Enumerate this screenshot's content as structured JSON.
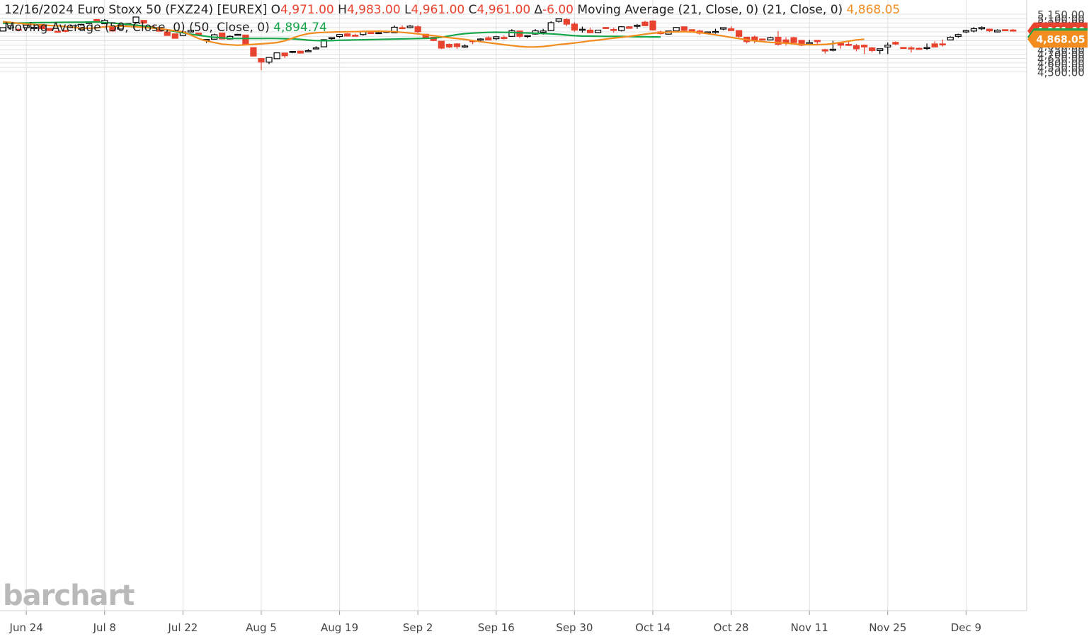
{
  "header": {
    "line1": {
      "date": "12/16/2024",
      "instrument": "Euro Stoxx 50 (FXZ24) [EUREX]",
      "o_label": "O",
      "o_value": "4,971.00",
      "h_label": "H",
      "h_value": "4,983.00",
      "l_label": "L",
      "l_value": "4,961.00",
      "c_label": "C",
      "c_value": "4,961.00",
      "d_label": "∆",
      "d_value": "-6.00",
      "ma21_label": "Moving Average (21, Close, 0)  (21, Close, 0)",
      "ma21_value": "4,868.05"
    },
    "line2": {
      "ma50_label": "Moving Average (50, Close, 0)  (50, Close, 0)",
      "ma50_value": "4,894.74"
    }
  },
  "watermark": "barchart",
  "colors": {
    "up": "#ffffff",
    "up_stroke": "#000000",
    "down": "#e8432e",
    "ma21": "#f28c1e",
    "ma50": "#17a64a",
    "grid": "#e0e0e0"
  },
  "chart_data": {
    "type": "candlestick",
    "ylim": [
      4490,
      5160
    ],
    "y_ticks": [
      "4,500.00",
      "4,550.00",
      "4,600.00",
      "4,650.00",
      "4,700.00",
      "4,750.00",
      "4,800.00",
      "4,850.00",
      "4,900.00",
      "4,950.00",
      "5,000.00",
      "5,050.00",
      "5,100.00",
      "5,150.00"
    ],
    "x_ticks": [
      {
        "label": "Jun 24",
        "index": 3
      },
      {
        "label": "Jul 8",
        "index": 13
      },
      {
        "label": "Jul 22",
        "index": 23
      },
      {
        "label": "Aug 5",
        "index": 33
      },
      {
        "label": "Aug 19",
        "index": 43
      },
      {
        "label": "Sep 2",
        "index": 53
      },
      {
        "label": "Sep 16",
        "index": 63
      },
      {
        "label": "Sep 30",
        "index": 73
      },
      {
        "label": "Oct 14",
        "index": 83
      },
      {
        "label": "Oct 28",
        "index": 93
      },
      {
        "label": "Nov 11",
        "index": 103
      },
      {
        "label": "Nov 25",
        "index": 113
      },
      {
        "label": "Dec 9",
        "index": 123
      }
    ],
    "price_badges": [
      {
        "label": "4,961.00",
        "value": 4961,
        "color": "#e8432e"
      },
      {
        "label": "4,894.74",
        "value": 4894.74,
        "color": "#17a64a"
      },
      {
        "label": "4,868.05",
        "value": 4868.05,
        "color": "#f28c1e"
      }
    ],
    "candles": [
      {
        "o": 4960,
        "h": 4998,
        "l": 4958,
        "c": 4998
      },
      {
        "o": 4995,
        "h": 5020,
        "l": 4975,
        "c": 5018
      },
      {
        "o": 4980,
        "h": 4985,
        "l": 4960,
        "c": 4975
      },
      {
        "o": 4998,
        "h": 5030,
        "l": 4995,
        "c": 5026
      },
      {
        "o": 4988,
        "h": 5010,
        "l": 4985,
        "c": 5002
      },
      {
        "o": 5035,
        "h": 5038,
        "l": 4984,
        "c": 4986
      },
      {
        "o": 4988,
        "h": 4990,
        "l": 4958,
        "c": 4966
      },
      {
        "o": 4958,
        "h": 4962,
        "l": 4950,
        "c": 4952
      },
      {
        "o": 4968,
        "h": 4972,
        "l": 4945,
        "c": 4966
      },
      {
        "o": 4998,
        "h": 5020,
        "l": 4998,
        "c": 5018
      },
      {
        "o": 4982,
        "h": 5042,
        "l": 4980,
        "c": 5035
      },
      {
        "o": 5057,
        "h": 5057,
        "l": 5055,
        "c": 5057
      },
      {
        "o": 5090,
        "h": 5090,
        "l": 5055,
        "c": 5058
      },
      {
        "o": 5042,
        "h": 5095,
        "l": 5042,
        "c": 5080
      },
      {
        "o": 5003,
        "h": 5012,
        "l": 4958,
        "c": 4960
      },
      {
        "o": 4982,
        "h": 5034,
        "l": 4980,
        "c": 5026
      },
      {
        "o": 5030,
        "h": 5048,
        "l": 5030,
        "c": 5045
      },
      {
        "o": 5058,
        "h": 5118,
        "l": 5058,
        "c": 5118
      },
      {
        "o": 5080,
        "h": 5082,
        "l": 5040,
        "c": 5050
      },
      {
        "o": 5012,
        "h": 5018,
        "l": 5003,
        "c": 5005
      },
      {
        "o": 5000,
        "h": 5002,
        "l": 4955,
        "c": 4958
      },
      {
        "o": 4950,
        "h": 4950,
        "l": 4905,
        "c": 4910
      },
      {
        "o": 4928,
        "h": 4928,
        "l": 4878,
        "c": 4878
      },
      {
        "o": 4910,
        "h": 4972,
        "l": 4904,
        "c": 4950
      },
      {
        "o": 4950,
        "h": 4978,
        "l": 4945,
        "c": 4968
      },
      {
        "o": 4937,
        "h": 4940,
        "l": 4913,
        "c": 4918
      },
      {
        "o": 4855,
        "h": 4868,
        "l": 4826,
        "c": 4865
      },
      {
        "o": 4868,
        "h": 4930,
        "l": 4865,
        "c": 4918
      },
      {
        "o": 4937,
        "h": 4937,
        "l": 4870,
        "c": 4870
      },
      {
        "o": 4870,
        "h": 4910,
        "l": 4865,
        "c": 4900
      },
      {
        "o": 4923,
        "h": 4923,
        "l": 4923,
        "c": 4923
      },
      {
        "o": 4915,
        "h": 4915,
        "l": 4796,
        "c": 4815
      },
      {
        "o": 4773,
        "h": 4773,
        "l": 4672,
        "c": 4678
      },
      {
        "o": 4650,
        "h": 4650,
        "l": 4518,
        "c": 4610
      },
      {
        "o": 4610,
        "h": 4668,
        "l": 4587,
        "c": 4662
      },
      {
        "o": 4648,
        "h": 4715,
        "l": 4645,
        "c": 4714
      },
      {
        "o": 4712,
        "h": 4717,
        "l": 4656,
        "c": 4681
      },
      {
        "o": 4720,
        "h": 4730,
        "l": 4710,
        "c": 4730
      },
      {
        "o": 4733,
        "h": 4735,
        "l": 4710,
        "c": 4711
      },
      {
        "o": 4731,
        "h": 4755,
        "l": 4728,
        "c": 4738
      },
      {
        "o": 4770,
        "h": 4788,
        "l": 4755,
        "c": 4770
      },
      {
        "o": 4782,
        "h": 4867,
        "l": 4782,
        "c": 4862
      },
      {
        "o": 4878,
        "h": 4890,
        "l": 4862,
        "c": 4886
      },
      {
        "o": 4898,
        "h": 4925,
        "l": 4885,
        "c": 4920
      },
      {
        "o": 4928,
        "h": 4938,
        "l": 4898,
        "c": 4903
      },
      {
        "o": 4913,
        "h": 4930,
        "l": 4908,
        "c": 4910
      },
      {
        "o": 4920,
        "h": 4950,
        "l": 4908,
        "c": 4953
      },
      {
        "o": 4943,
        "h": 4948,
        "l": 4935,
        "c": 4940
      },
      {
        "o": 4940,
        "h": 4950,
        "l": 4938,
        "c": 4942
      },
      {
        "o": 4945,
        "h": 4962,
        "l": 4938,
        "c": 4957
      },
      {
        "o": 4940,
        "h": 5023,
        "l": 4935,
        "c": 5003
      },
      {
        "o": 4998,
        "h": 5025,
        "l": 4990,
        "c": 4993
      },
      {
        "o": 4998,
        "h": 5027,
        "l": 4990,
        "c": 5015
      },
      {
        "o": 5008,
        "h": 5025,
        "l": 4920,
        "c": 4952
      },
      {
        "o": 4924,
        "h": 4924,
        "l": 4875,
        "c": 4885
      },
      {
        "o": 4890,
        "h": 4890,
        "l": 4844,
        "c": 4853
      },
      {
        "o": 4845,
        "h": 4845,
        "l": 4757,
        "c": 4767
      },
      {
        "o": 4810,
        "h": 4820,
        "l": 4768,
        "c": 4780
      },
      {
        "o": 4815,
        "h": 4824,
        "l": 4757,
        "c": 4784
      },
      {
        "o": 4784,
        "h": 4810,
        "l": 4770,
        "c": 4791
      },
      {
        "o": 4852,
        "h": 4858,
        "l": 4812,
        "c": 4840
      },
      {
        "o": 4858,
        "h": 4878,
        "l": 4850,
        "c": 4870
      },
      {
        "o": 4884,
        "h": 4900,
        "l": 4855,
        "c": 4860
      },
      {
        "o": 4873,
        "h": 4905,
        "l": 4858,
        "c": 4895
      },
      {
        "o": 4888,
        "h": 4909,
        "l": 4865,
        "c": 4875
      },
      {
        "o": 4900,
        "h": 4980,
        "l": 4895,
        "c": 4962
      },
      {
        "o": 4960,
        "h": 4963,
        "l": 4880,
        "c": 4900
      },
      {
        "o": 4900,
        "h": 4915,
        "l": 4880,
        "c": 4910
      },
      {
        "o": 4926,
        "h": 4982,
        "l": 4918,
        "c": 4962
      },
      {
        "o": 4945,
        "h": 4985,
        "l": 4920,
        "c": 4960
      },
      {
        "o": 4965,
        "h": 5070,
        "l": 4960,
        "c": 5054
      },
      {
        "o": 5070,
        "h": 5100,
        "l": 5055,
        "c": 5097
      },
      {
        "o": 5090,
        "h": 5105,
        "l": 5015,
        "c": 5038
      },
      {
        "o": 5038,
        "h": 5060,
        "l": 4953,
        "c": 4970
      },
      {
        "o": 4980,
        "h": 5010,
        "l": 4942,
        "c": 4980
      },
      {
        "o": 4970,
        "h": 4998,
        "l": 4940,
        "c": 4940
      },
      {
        "o": 4942,
        "h": 4975,
        "l": 4935,
        "c": 4970
      },
      {
        "o": 5000,
        "h": 5006,
        "l": 4985,
        "c": 4988
      },
      {
        "o": 4978,
        "h": 4998,
        "l": 4942,
        "c": 4968
      },
      {
        "o": 4966,
        "h": 5013,
        "l": 4955,
        "c": 5008
      },
      {
        "o": 5008,
        "h": 5010,
        "l": 4990,
        "c": 4990
      },
      {
        "o": 5018,
        "h": 5040,
        "l": 4985,
        "c": 5025
      },
      {
        "o": 5060,
        "h": 5075,
        "l": 5020,
        "c": 5020
      },
      {
        "o": 5072,
        "h": 5083,
        "l": 4965,
        "c": 4972
      },
      {
        "o": 4950,
        "h": 4965,
        "l": 4920,
        "c": 4930
      },
      {
        "o": 4925,
        "h": 4960,
        "l": 4920,
        "c": 4960
      },
      {
        "o": 4962,
        "h": 5005,
        "l": 4955,
        "c": 5000
      },
      {
        "o": 5008,
        "h": 5010,
        "l": 4950,
        "c": 4968
      },
      {
        "o": 4975,
        "h": 4980,
        "l": 4942,
        "c": 4955
      },
      {
        "o": 4960,
        "h": 4975,
        "l": 4918,
        "c": 4935
      },
      {
        "o": 4940,
        "h": 4950,
        "l": 4925,
        "c": 4950
      },
      {
        "o": 4947,
        "h": 4985,
        "l": 4930,
        "c": 4955
      },
      {
        "o": 4982,
        "h": 5000,
        "l": 4970,
        "c": 4998
      },
      {
        "o": 4985,
        "h": 5015,
        "l": 4962,
        "c": 4965
      },
      {
        "o": 4965,
        "h": 4968,
        "l": 4880,
        "c": 4900
      },
      {
        "o": 4890,
        "h": 4895,
        "l": 4820,
        "c": 4840
      },
      {
        "o": 4892,
        "h": 4910,
        "l": 4822,
        "c": 4848
      },
      {
        "o": 4870,
        "h": 4875,
        "l": 4862,
        "c": 4865
      },
      {
        "o": 4860,
        "h": 4895,
        "l": 4855,
        "c": 4885
      },
      {
        "o": 4890,
        "h": 4960,
        "l": 4795,
        "c": 4810
      },
      {
        "o": 4860,
        "h": 4890,
        "l": 4795,
        "c": 4830
      },
      {
        "o": 4885,
        "h": 4895,
        "l": 4825,
        "c": 4830
      },
      {
        "o": 4855,
        "h": 4860,
        "l": 4790,
        "c": 4800
      },
      {
        "o": 4815,
        "h": 4860,
        "l": 4810,
        "c": 4830
      },
      {
        "o": 4855,
        "h": 4855,
        "l": 4800,
        "c": 4840
      },
      {
        "o": 4750,
        "h": 4760,
        "l": 4705,
        "c": 4735
      },
      {
        "o": 4750,
        "h": 4850,
        "l": 4730,
        "c": 4755
      },
      {
        "o": 4820,
        "h": 4830,
        "l": 4760,
        "c": 4800
      },
      {
        "o": 4810,
        "h": 4840,
        "l": 4790,
        "c": 4805
      },
      {
        "o": 4795,
        "h": 4815,
        "l": 4730,
        "c": 4760
      },
      {
        "o": 4800,
        "h": 4810,
        "l": 4700,
        "c": 4780
      },
      {
        "o": 4770,
        "h": 4780,
        "l": 4720,
        "c": 4740
      },
      {
        "o": 4740,
        "h": 4760,
        "l": 4700,
        "c": 4760
      },
      {
        "o": 4780,
        "h": 4830,
        "l": 4700,
        "c": 4800
      },
      {
        "o": 4832,
        "h": 4843,
        "l": 4800,
        "c": 4813
      },
      {
        "o": 4775,
        "h": 4778,
        "l": 4768,
        "c": 4770
      },
      {
        "o": 4770,
        "h": 4790,
        "l": 4718,
        "c": 4760
      },
      {
        "o": 4765,
        "h": 4775,
        "l": 4750,
        "c": 4753
      },
      {
        "o": 4770,
        "h": 4820,
        "l": 4745,
        "c": 4775
      },
      {
        "o": 4815,
        "h": 4845,
        "l": 4785,
        "c": 4780
      },
      {
        "o": 4815,
        "h": 4865,
        "l": 4785,
        "c": 4810
      },
      {
        "o": 4860,
        "h": 4900,
        "l": 4855,
        "c": 4890
      },
      {
        "o": 4900,
        "h": 4930,
        "l": 4885,
        "c": 4920
      },
      {
        "o": 4950,
        "h": 4975,
        "l": 4935,
        "c": 4965
      },
      {
        "o": 4960,
        "h": 5005,
        "l": 4945,
        "c": 4986
      },
      {
        "o": 4985,
        "h": 5013,
        "l": 4970,
        "c": 5000
      },
      {
        "o": 4981,
        "h": 4985,
        "l": 4950,
        "c": 4962
      },
      {
        "o": 4950,
        "h": 4980,
        "l": 4945,
        "c": 4970
      },
      {
        "o": 4975,
        "h": 4980,
        "l": 4960,
        "c": 4973
      },
      {
        "o": 4971,
        "h": 4983,
        "l": 4961,
        "c": 4961
      }
    ],
    "ma21": [
      5065,
      5057,
      5048,
      5040,
      5033,
      5027,
      5022,
      5018,
      5010,
      5000,
      4993,
      4990,
      4995,
      5008,
      5015,
      5016,
      5013,
      5008,
      5000,
      4993,
      4986,
      4974,
      4962,
      4950,
      4915,
      4875,
      4848,
      4830,
      4812,
      4805,
      4800,
      4804,
      4810,
      4815,
      4822,
      4830,
      4850,
      4880,
      4910,
      4930,
      4940,
      4945,
      4948,
      4950,
      4952,
      4953,
      4955,
      4957,
      4958,
      4956,
      4953,
      4945,
      4937,
      4928,
      4917,
      4908,
      4895,
      4885,
      4875,
      4866,
      4853,
      4840,
      4828,
      4818,
      4806,
      4796,
      4786,
      4780,
      4780,
      4785,
      4795,
      4808,
      4815,
      4825,
      4836,
      4850,
      4858,
      4870,
      4880,
      4890,
      4900,
      4912,
      4925,
      4935,
      4942,
      4948,
      4952,
      4953,
      4950,
      4942,
      4930,
      4917,
      4903,
      4888,
      4875,
      4862,
      4850,
      4840,
      4832,
      4828,
      4823,
      4815,
      4808,
      4806,
      4806,
      4810,
      4818,
      4832,
      4845,
      4860,
      4868
    ],
    "ma50": [
      5048,
      5049,
      5050,
      5052,
      5054,
      5055,
      5056,
      5057,
      5058,
      5059,
      5060,
      5061,
      5062,
      5056,
      5050,
      5043,
      5035,
      5026,
      5017,
      5004,
      4987,
      4972,
      4955,
      4940,
      4925,
      4912,
      4900,
      4890,
      4883,
      4877,
      4876,
      4876,
      4876,
      4876,
      4877,
      4876,
      4874,
      4872,
      4866,
      4858,
      4852,
      4851,
      4852,
      4856,
      4858,
      4860,
      4862,
      4863,
      4865,
      4867,
      4869,
      4871,
      4873,
      4875,
      4877,
      4880,
      4890,
      4905,
      4920,
      4930,
      4937,
      4941,
      4945,
      4946,
      4945,
      4943,
      4940,
      4938,
      4935,
      4932,
      4928,
      4922,
      4914,
      4907,
      4903,
      4902,
      4901,
      4900,
      4900,
      4899,
      4897,
      4895,
      4895,
      4894,
      4894
    ]
  }
}
